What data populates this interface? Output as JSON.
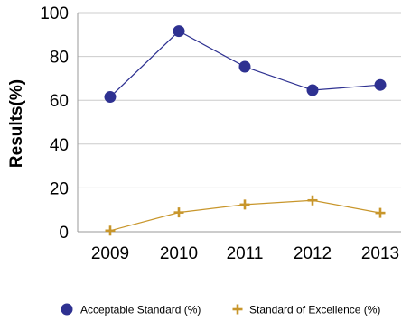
{
  "chart_data": {
    "type": "line",
    "x": [
      "2009",
      "2010",
      "2011",
      "2012",
      "2013"
    ],
    "ylabel": "Results(%)",
    "xlabel": "",
    "ylim": [
      0,
      100
    ],
    "yticks": [
      "0",
      "20",
      "40",
      "60",
      "80",
      "100"
    ],
    "grid": "horizontal",
    "legend_position": "bottom",
    "series": [
      {
        "name": "Acceptable Standard (%)",
        "values": [
          61.5,
          91.5,
          75.3,
          64.6,
          67.0
        ],
        "color": "#2e3191",
        "marker": "circle"
      },
      {
        "name": "Standard of Excellence (%)",
        "values": [
          0.5,
          8.8,
          12.4,
          14.3,
          8.6
        ],
        "color": "#c8962b",
        "marker": "plus"
      }
    ]
  }
}
